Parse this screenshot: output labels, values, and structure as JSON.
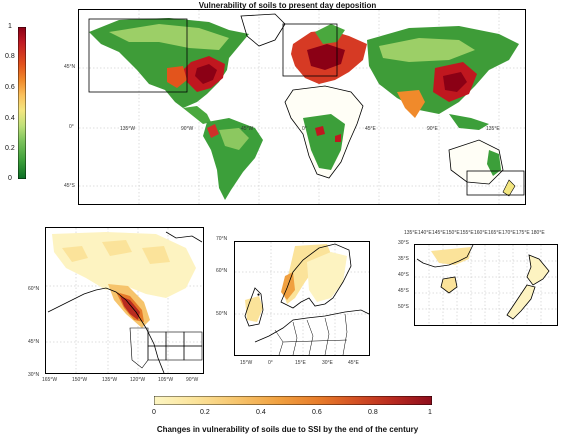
{
  "main_map": {
    "title": "Vulnerability of soils to present day deposition",
    "lon_ticks": [
      "135°W",
      "90°W",
      "45°W",
      "0°",
      "45°E",
      "90°E",
      "135°E"
    ],
    "lat_ticks": [
      "45°N",
      "0°",
      "45°S"
    ],
    "colorbar": {
      "ticks": [
        "1",
        "0.8",
        "0.6",
        "0.4",
        "0.2",
        "0"
      ],
      "colors": [
        "#8b0015",
        "#c01a24",
        "#e3541c",
        "#f08a2b",
        "#fbc15c",
        "#f3e680",
        "#bfe079",
        "#7cc35c",
        "#3c9f3a",
        "#0a6d24"
      ]
    }
  },
  "inset_na": {
    "lat_ticks": [
      "60°N",
      "45°N",
      "30°N"
    ],
    "lon_ticks": [
      "165°W",
      "150°W",
      "135°W",
      "120°W",
      "105°W",
      "90°W"
    ]
  },
  "inset_eu": {
    "lat_ticks": [
      "70°N",
      "60°N",
      "50°N"
    ],
    "lon_ticks": [
      "15°W",
      "0°",
      "15°E",
      "30°E",
      "45°E"
    ]
  },
  "inset_nz": {
    "lon_ticks": [
      "135°E",
      "140°E",
      "145°E",
      "150°E",
      "155°E",
      "160°E",
      "165°E",
      "170°E",
      "175°E",
      "180°E"
    ],
    "lat_ticks": [
      "30°S",
      "35°S",
      "40°S",
      "45°S",
      "50°S"
    ]
  },
  "bottom_colorbar": {
    "ticks": [
      "0",
      "0.2",
      "0.4",
      "0.6",
      "0.8",
      "1"
    ],
    "label": "Changes in vulnerability of soils due to SSI by the end of the century",
    "colors": [
      "#fdf6c3",
      "#fbe39a",
      "#f6c46c",
      "#f0a040",
      "#e67a2a",
      "#d45224",
      "#b82a20",
      "#8e0d1c"
    ]
  }
}
